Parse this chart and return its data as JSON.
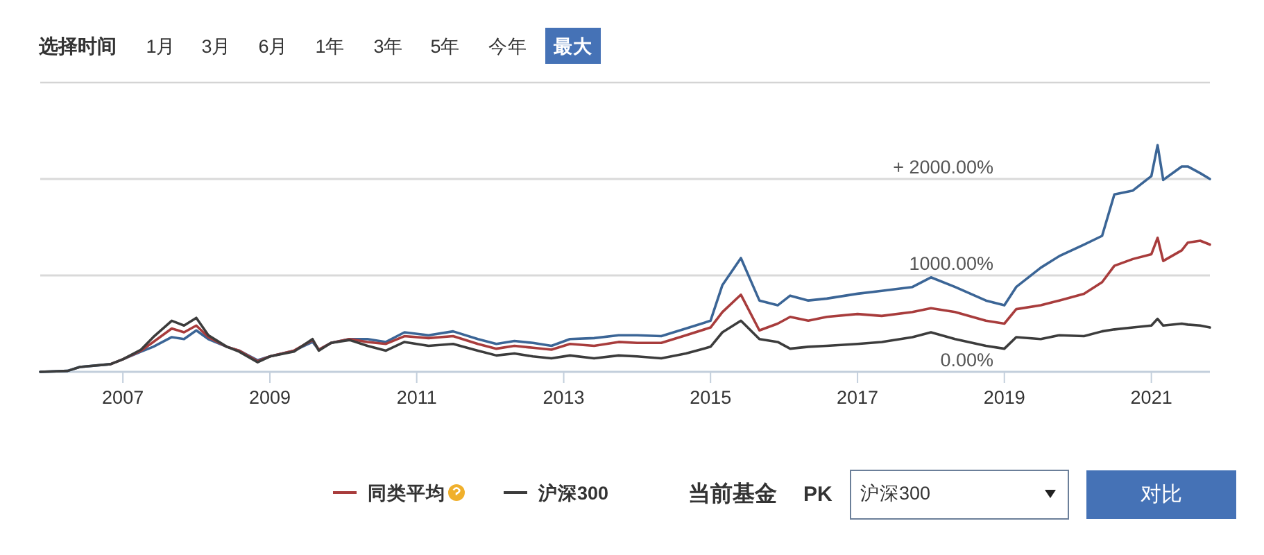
{
  "chart_data": {
    "type": "line",
    "x": [
      "2005-11-16",
      "2006-04",
      "2006-06",
      "2006-11",
      "2007-01",
      "2007-04",
      "2007-06",
      "2007-09",
      "2007-11",
      "2008-01",
      "2008-03",
      "2008-06",
      "2008-08",
      "2008-11",
      "2009-01",
      "2009-05",
      "2009-08",
      "2009-09",
      "2009-11",
      "2010-02",
      "2010-05",
      "2010-08",
      "2010-11",
      "2011-03",
      "2011-07",
      "2011-11",
      "2012-02",
      "2012-05",
      "2012-08",
      "2012-11",
      "2013-02",
      "2013-06",
      "2013-10",
      "2014-01",
      "2014-05",
      "2014-09",
      "2015-01",
      "2015-03",
      "2015-06",
      "2015-09",
      "2015-12",
      "2016-02",
      "2016-05",
      "2016-08",
      "2017-01",
      "2017-05",
      "2017-10",
      "2018-01",
      "2018-05",
      "2018-10",
      "2019-01",
      "2019-03",
      "2019-07",
      "2019-10",
      "2020-02",
      "2020-05",
      "2020-07",
      "2020-10",
      "2021-01",
      "2021-02",
      "2021-03",
      "2021-06",
      "2021-07",
      "2021-09",
      "2021-10-19"
    ],
    "series": [
      {
        "color": "#3b6596",
        "values": [
          0,
          10,
          50,
          80,
          130,
          210,
          260,
          360,
          340,
          430,
          340,
          260,
          220,
          120,
          160,
          220,
          310,
          230,
          300,
          340,
          340,
          310,
          410,
          380,
          420,
          340,
          290,
          320,
          300,
          270,
          340,
          350,
          380,
          380,
          370,
          450,
          530,
          900,
          1180,
          740,
          690,
          790,
          740,
          760,
          810,
          840,
          880,
          980,
          880,
          740,
          690,
          880,
          1080,
          1200,
          1320,
          1410,
          1840,
          1880,
          2030,
          2350,
          1990,
          2130,
          2130,
          2060,
          2000
        ]
      },
      {
        "name": "同类平均",
        "color": "#a83c3c",
        "values": [
          null,
          null,
          null,
          80,
          130,
          220,
          310,
          450,
          410,
          480,
          360,
          260,
          220,
          110,
          160,
          220,
          330,
          230,
          300,
          340,
          310,
          290,
          370,
          350,
          370,
          290,
          240,
          270,
          250,
          230,
          290,
          270,
          310,
          300,
          300,
          380,
          460,
          620,
          800,
          430,
          500,
          570,
          530,
          570,
          600,
          580,
          620,
          660,
          620,
          530,
          500,
          650,
          690,
          740,
          810,
          930,
          1100,
          1170,
          1220,
          1390,
          1150,
          1260,
          1340,
          1360,
          1320
        ]
      },
      {
        "name": "沪深300",
        "color": "#3c3c3c",
        "values": [
          0,
          10,
          50,
          80,
          130,
          230,
          360,
          530,
          480,
          560,
          380,
          260,
          210,
          100,
          160,
          210,
          340,
          220,
          300,
          330,
          270,
          220,
          310,
          270,
          290,
          220,
          170,
          190,
          160,
          140,
          170,
          140,
          170,
          160,
          140,
          190,
          260,
          410,
          530,
          340,
          310,
          240,
          260,
          270,
          290,
          310,
          360,
          410,
          340,
          270,
          240,
          360,
          340,
          380,
          370,
          420,
          440,
          460,
          480,
          550,
          480,
          500,
          490,
          480,
          460
        ]
      }
    ],
    "xlim": [
      "2005-11-16",
      "2021-10-19"
    ],
    "xticks": [
      {
        "value": "2007-01-01",
        "label": "2007"
      },
      {
        "value": "2009-01-01",
        "label": "2009"
      },
      {
        "value": "2011-01-01",
        "label": "2011"
      },
      {
        "value": "2013-01-01",
        "label": "2013"
      },
      {
        "value": "2015-01-01",
        "label": "2015"
      },
      {
        "value": "2017-01-01",
        "label": "2017"
      },
      {
        "value": "2019-01-01",
        "label": "2019"
      },
      {
        "value": "2021-01-01",
        "label": "2021"
      }
    ],
    "ylim": [
      0,
      3000
    ],
    "yticks": [
      {
        "value": 0,
        "label": "0.00%"
      },
      {
        "value": 1000,
        "label": "1000.00%"
      },
      {
        "value": 2000,
        "label": "+ 2000.00%"
      }
    ],
    "grid": "y",
    "legend": "bottom",
    "annotations": [
      "选择时间",
      "1月",
      "3月",
      "6月",
      "1年",
      "3年",
      "5年",
      "今年",
      "最大",
      "当前基金",
      "PK",
      "沪深300",
      "对比"
    ]
  }
}
